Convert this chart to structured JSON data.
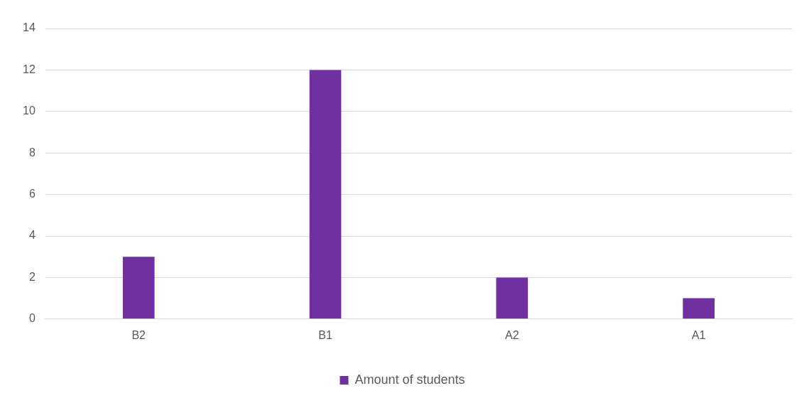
{
  "chart_data": {
    "type": "bar",
    "categories": [
      "B2",
      "B1",
      "A2",
      "A1"
    ],
    "series": [
      {
        "name": "Amount of students",
        "color": "#7030a0",
        "values": [
          3,
          12,
          2,
          1
        ]
      }
    ],
    "ylim": [
      0,
      14
    ],
    "yticks": [
      0,
      2,
      4,
      6,
      8,
      10,
      12,
      14
    ],
    "grid": "y",
    "legend": "bottom"
  }
}
